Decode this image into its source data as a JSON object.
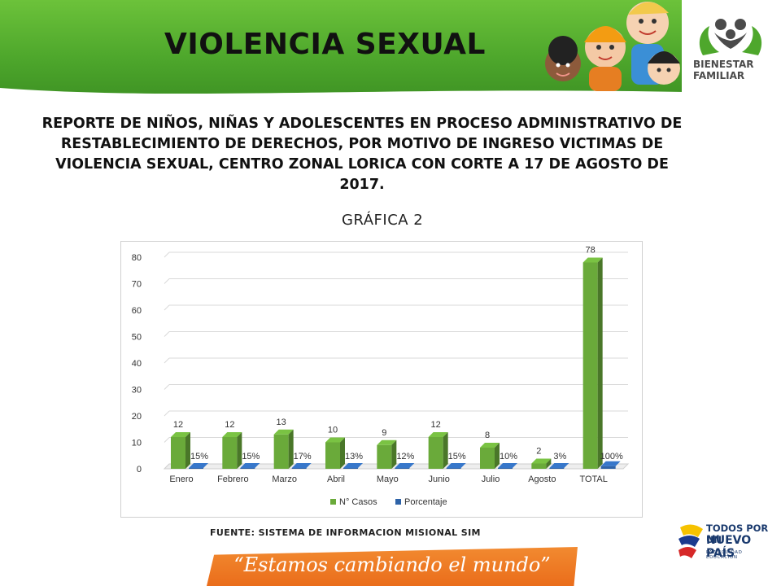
{
  "header": {
    "title": "VIOLENCIA SEXUAL",
    "logo_text": "BIENESTAR FAMILIAR",
    "logo_line1": "BIENESTAR",
    "logo_line2": "FAMILIAR",
    "bg_color": "#5bb431"
  },
  "report": {
    "title": "REPORTE DE NIÑOS, NIÑAS Y ADOLESCENTES EN PROCESO ADMINISTRATIVO DE RESTABLECIMIENTO DE DERECHOS, POR MOTIVO DE INGRESO VICTIMAS DE VIOLENCIA SEXUAL, CENTRO ZONAL LORICA CON CORTE A 17 DE AGOSTO DE 2017.",
    "graph_label": "GRÁFICA 2"
  },
  "chart_data": {
    "type": "bar",
    "categories": [
      "Enero",
      "Febrero",
      "Marzo",
      "Abril",
      "Mayo",
      "Junio",
      "Julio",
      "Agosto",
      "TOTAL"
    ],
    "series": [
      {
        "name": "N° Casos",
        "values": [
          12,
          12,
          13,
          10,
          9,
          12,
          8,
          2,
          78
        ],
        "labels": [
          "12",
          "12",
          "13",
          "10",
          "9",
          "12",
          "8",
          "2",
          "78"
        ],
        "color": "#6aaa3a"
      },
      {
        "name": "Porcentaje",
        "values": [
          0.15,
          0.15,
          0.17,
          0.13,
          0.12,
          0.15,
          0.1,
          0.03,
          1.0
        ],
        "labels": [
          "15%",
          "15%",
          "17%",
          "13%",
          "12%",
          "15%",
          "10%",
          "3%",
          "100%"
        ],
        "color": "#2e63a8"
      }
    ],
    "y_ticks": [
      "0",
      "10",
      "20",
      "30",
      "40",
      "50",
      "60",
      "70",
      "80"
    ],
    "ylim": [
      0,
      80
    ],
    "grid": true,
    "legend_position": "bottom",
    "style": "3d-bars"
  },
  "footer": {
    "source": "FUENTE: SISTEMA DE INFORMACION MISIONAL SIM",
    "slogan": "“Estamos cambiando el mundo”",
    "brand_line1": "TODOS POR UN",
    "brand_line2": "NUEVO PAÍS",
    "brand_line3": "PAZ  EQUIDAD  EDUCACIÓN"
  }
}
